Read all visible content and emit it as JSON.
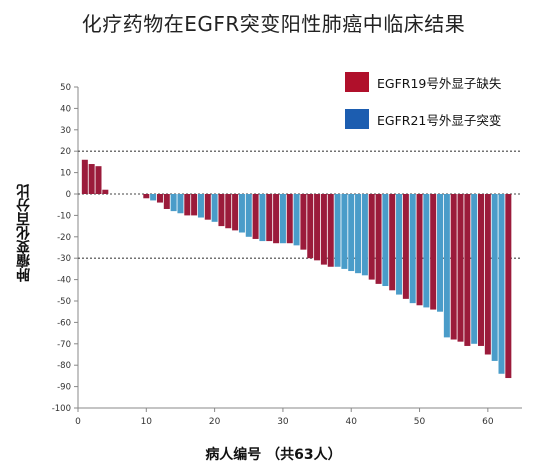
{
  "chart_data": {
    "type": "bar",
    "title": "化疗药物在EGFR突变阳性肺癌中临床结果",
    "xlabel": "病人编号 （共63人）",
    "ylabel": "肿瘤变化百分比",
    "ylim": [
      -100,
      50
    ],
    "xlim": [
      0,
      65
    ],
    "yticks": [
      50,
      40,
      30,
      20,
      10,
      0,
      -10,
      -20,
      -30,
      -40,
      -50,
      -60,
      -70,
      -80,
      -90,
      -100
    ],
    "xticks": [
      0,
      10,
      20,
      30,
      40,
      50,
      60
    ],
    "reference_lines": [
      20,
      0,
      -30
    ],
    "legend_position": "top-right",
    "series": [
      {
        "name": "EGFR19号外显子缺失",
        "color": "#9b1b3b",
        "points": [
          {
            "x": 1,
            "y": 16
          },
          {
            "x": 2,
            "y": 14
          },
          {
            "x": 3,
            "y": 13
          },
          {
            "x": 4,
            "y": 2
          },
          {
            "x": 10,
            "y": -2
          },
          {
            "x": 12,
            "y": -4
          },
          {
            "x": 13,
            "y": -7
          },
          {
            "x": 16,
            "y": -10
          },
          {
            "x": 17,
            "y": -10
          },
          {
            "x": 19,
            "y": -12
          },
          {
            "x": 21,
            "y": -15
          },
          {
            "x": 22,
            "y": -16
          },
          {
            "x": 23,
            "y": -17
          },
          {
            "x": 26,
            "y": -21
          },
          {
            "x": 28,
            "y": -22
          },
          {
            "x": 29,
            "y": -23
          },
          {
            "x": 31,
            "y": -23
          },
          {
            "x": 33,
            "y": -26
          },
          {
            "x": 34,
            "y": -30
          },
          {
            "x": 35,
            "y": -31
          },
          {
            "x": 36,
            "y": -33
          },
          {
            "x": 37,
            "y": -34
          },
          {
            "x": 43,
            "y": -40
          },
          {
            "x": 44,
            "y": -42
          },
          {
            "x": 46,
            "y": -45
          },
          {
            "x": 48,
            "y": -49
          },
          {
            "x": 50,
            "y": -52
          },
          {
            "x": 52,
            "y": -54
          },
          {
            "x": 55,
            "y": -68
          },
          {
            "x": 56,
            "y": -69
          },
          {
            "x": 57,
            "y": -71
          },
          {
            "x": 59,
            "y": -71
          },
          {
            "x": 60,
            "y": -75
          },
          {
            "x": 63,
            "y": -86
          }
        ]
      },
      {
        "name": "EGFR21号外显子突变",
        "color": "#4a9cc9",
        "points": [
          {
            "x": 11,
            "y": -3
          },
          {
            "x": 14,
            "y": -8
          },
          {
            "x": 15,
            "y": -9
          },
          {
            "x": 18,
            "y": -11
          },
          {
            "x": 20,
            "y": -13
          },
          {
            "x": 24,
            "y": -18
          },
          {
            "x": 25,
            "y": -20
          },
          {
            "x": 27,
            "y": -22
          },
          {
            "x": 30,
            "y": -23
          },
          {
            "x": 32,
            "y": -24
          },
          {
            "x": 38,
            "y": -34
          },
          {
            "x": 39,
            "y": -35
          },
          {
            "x": 40,
            "y": -36
          },
          {
            "x": 41,
            "y": -37
          },
          {
            "x": 42,
            "y": -38
          },
          {
            "x": 45,
            "y": -43
          },
          {
            "x": 47,
            "y": -47
          },
          {
            "x": 49,
            "y": -51
          },
          {
            "x": 51,
            "y": -53
          },
          {
            "x": 53,
            "y": -55
          },
          {
            "x": 54,
            "y": -67
          },
          {
            "x": 58,
            "y": -70
          },
          {
            "x": 61,
            "y": -78
          },
          {
            "x": 62,
            "y": -84
          }
        ]
      }
    ]
  },
  "legend": [
    {
      "label": "EGFR19号外显子缺失",
      "color": "#b0102b"
    },
    {
      "label": "EGFR21号外显子突变",
      "color": "#1c5db0"
    }
  ]
}
